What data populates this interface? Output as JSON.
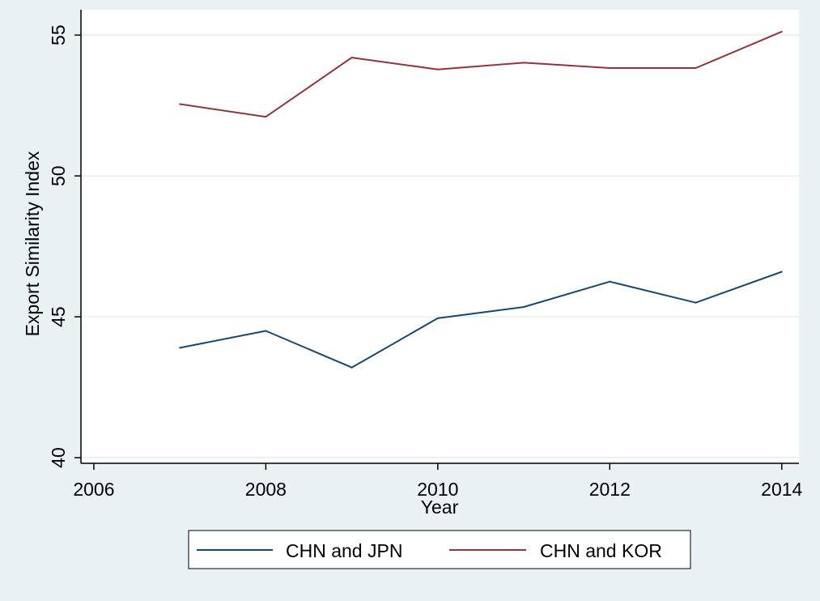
{
  "chart_data": {
    "type": "line",
    "title": "",
    "xlabel": "Year",
    "ylabel": "Export Similarity Index",
    "x": [
      2007,
      2008,
      2009,
      2010,
      2011,
      2012,
      2013,
      2014
    ],
    "xlim": [
      2006,
      2014
    ],
    "ylim": [
      40,
      55
    ],
    "xticks": [
      2006,
      2008,
      2010,
      2012,
      2014
    ],
    "yticks": [
      40,
      45,
      50,
      55
    ],
    "grid": true,
    "legend": "bottom",
    "series": [
      {
        "name": "CHN and JPN",
        "color": "#1a476f",
        "values": [
          43.9,
          44.5,
          43.2,
          44.95,
          45.35,
          46.25,
          45.5,
          46.6
        ]
      },
      {
        "name": "CHN and KOR",
        "color": "#90353b",
        "values": [
          52.55,
          52.1,
          54.2,
          53.78,
          54.02,
          53.83,
          53.83,
          55.12
        ]
      }
    ]
  },
  "colors": {
    "background": "#eaf2f3",
    "plot_background": "#ffffff",
    "gridline": "#eaf2f3",
    "axis": "#000000"
  }
}
